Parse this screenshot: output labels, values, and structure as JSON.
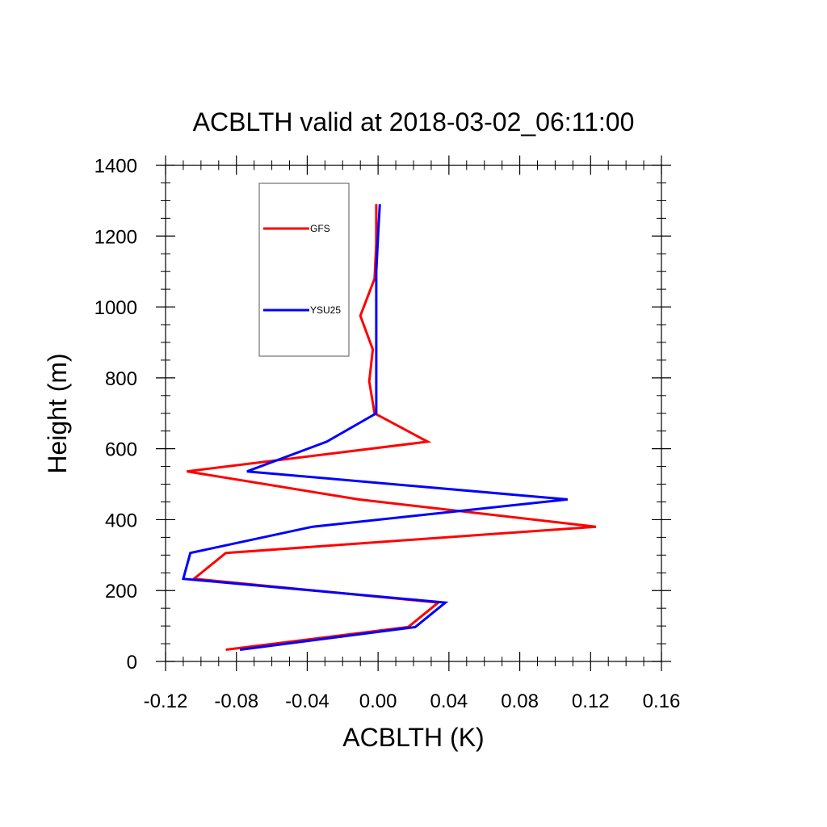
{
  "chart_data": {
    "type": "line",
    "title": "ACBLTH valid at 2018-03-02_06:11:00",
    "xlabel": "ACBLTH (K)",
    "ylabel": "Height (m)",
    "xlim": [
      -0.12,
      0.16
    ],
    "ylim": [
      0,
      1400
    ],
    "x_ticks": [
      -0.12,
      -0.08,
      -0.04,
      0.0,
      0.04,
      0.08,
      0.12,
      0.16
    ],
    "x_tick_labels": [
      "-0.12",
      "-0.08",
      "-0.04",
      "0.00",
      "0.04",
      "0.08",
      "0.12",
      "0.16"
    ],
    "y_ticks": [
      0,
      200,
      400,
      600,
      800,
      1000,
      1200,
      1400
    ],
    "y_tick_labels": [
      "0",
      "200",
      "400",
      "600",
      "800",
      "1000",
      "1200",
      "1400"
    ],
    "legend_position": "top-left",
    "grid": false,
    "series": [
      {
        "name": "GFS",
        "color": "#ff0000",
        "points": [
          [
            -0.086,
            33
          ],
          [
            0.017,
            97
          ],
          [
            0.034,
            166
          ],
          [
            -0.104,
            233
          ],
          [
            -0.086,
            306
          ],
          [
            0.123,
            380
          ],
          [
            -0.011,
            457
          ],
          [
            -0.108,
            536
          ],
          [
            0.028,
            620
          ],
          [
            -0.002,
            700
          ],
          [
            -0.005,
            790
          ],
          [
            -0.003,
            880
          ],
          [
            -0.01,
            975
          ],
          [
            -0.002,
            1080
          ],
          [
            -0.001,
            1180
          ],
          [
            -0.001,
            1290
          ]
        ]
      },
      {
        "name": "YSU25",
        "color": "#0000ff",
        "points": [
          [
            -0.078,
            33
          ],
          [
            0.021,
            97
          ],
          [
            0.038,
            166
          ],
          [
            -0.11,
            233
          ],
          [
            -0.106,
            306
          ],
          [
            -0.037,
            380
          ],
          [
            0.107,
            457
          ],
          [
            -0.074,
            536
          ],
          [
            -0.029,
            620
          ],
          [
            -0.001,
            700
          ],
          [
            -0.001,
            800
          ],
          [
            -0.001,
            900
          ],
          [
            -0.001,
            1000
          ],
          [
            -0.001,
            1100
          ],
          [
            0.0,
            1200
          ],
          [
            0.001,
            1290
          ]
        ]
      }
    ]
  }
}
